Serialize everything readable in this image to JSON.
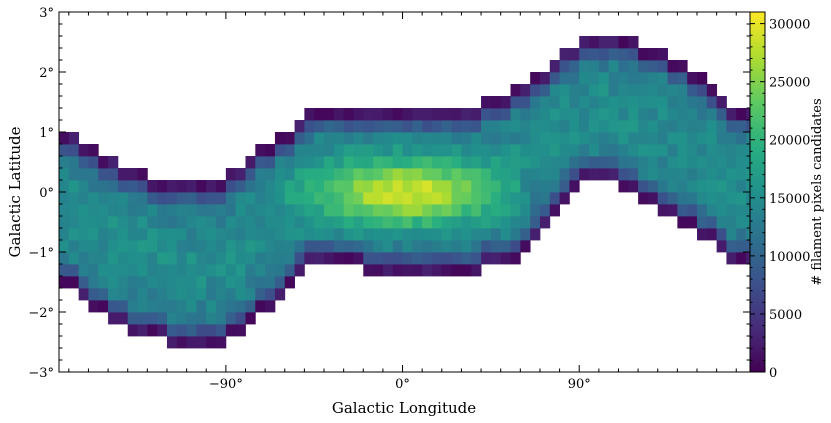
{
  "chart_data": {
    "type": "heatmap",
    "title": "",
    "xlabel": "Galactic Longitude",
    "ylabel": "Galactic Latitude",
    "x_ticks": [
      {
        "value": -90,
        "label": "−90°"
      },
      {
        "value": 0,
        "label": "0°"
      },
      {
        "value": 90,
        "label": "90°"
      }
    ],
    "y_ticks": [
      {
        "value": 3,
        "label": "3°"
      },
      {
        "value": 2,
        "label": "2°"
      },
      {
        "value": 1,
        "label": "1°"
      },
      {
        "value": 0,
        "label": "0°"
      },
      {
        "value": -1,
        "label": "−1°"
      },
      {
        "value": -2,
        "label": "−2°"
      },
      {
        "value": -3,
        "label": "−3°"
      }
    ],
    "xlim": [
      -175,
      177
    ],
    "ylim": [
      -3,
      3
    ],
    "bin_size_deg": {
      "x": 5,
      "y": 0.2
    },
    "colorbar": {
      "label": "# filament pixels candidates",
      "range": [
        0,
        31000
      ],
      "ticks": [
        0,
        5000,
        10000,
        15000,
        20000,
        25000,
        30000
      ],
      "colormap": "viridis"
    },
    "occupied_band": [
      {
        "l": -170,
        "b_min": -1.6,
        "b_max": 1.0
      },
      {
        "l": -160,
        "b_min": -1.9,
        "b_max": 0.8
      },
      {
        "l": -150,
        "b_min": -2.1,
        "b_max": 0.6
      },
      {
        "l": -140,
        "b_min": -2.3,
        "b_max": 0.4
      },
      {
        "l": -130,
        "b_min": -2.4,
        "b_max": 0.3
      },
      {
        "l": -120,
        "b_min": -2.5,
        "b_max": 0.2
      },
      {
        "l": -110,
        "b_min": -2.5,
        "b_max": 0.2
      },
      {
        "l": -100,
        "b_min": -2.55,
        "b_max": 0.2
      },
      {
        "l": -90,
        "b_min": -2.5,
        "b_max": 0.3
      },
      {
        "l": -80,
        "b_min": -2.3,
        "b_max": 0.5
      },
      {
        "l": -70,
        "b_min": -2.0,
        "b_max": 0.8
      },
      {
        "l": -60,
        "b_min": -1.6,
        "b_max": 1.0
      },
      {
        "l": -50,
        "b_min": -1.3,
        "b_max": 1.3
      },
      {
        "l": -40,
        "b_min": -1.2,
        "b_max": 1.5
      },
      {
        "l": -20,
        "b_min": -1.3,
        "b_max": 1.4
      },
      {
        "l": 0,
        "b_min": -1.3,
        "b_max": 1.4
      },
      {
        "l": 20,
        "b_min": -1.3,
        "b_max": 1.4
      },
      {
        "l": 40,
        "b_min": -1.3,
        "b_max": 1.5
      },
      {
        "l": 50,
        "b_min": -1.2,
        "b_max": 1.6
      },
      {
        "l": 60,
        "b_min": -1.1,
        "b_max": 1.8
      },
      {
        "l": 70,
        "b_min": -0.6,
        "b_max": 2.0
      },
      {
        "l": 80,
        "b_min": -0.2,
        "b_max": 2.3
      },
      {
        "l": 90,
        "b_min": 0.1,
        "b_max": 2.5
      },
      {
        "l": 100,
        "b_min": 0.2,
        "b_max": 2.6
      },
      {
        "l": 110,
        "b_min": 0.1,
        "b_max": 2.6
      },
      {
        "l": 120,
        "b_min": -0.1,
        "b_max": 2.5
      },
      {
        "l": 130,
        "b_min": -0.3,
        "b_max": 2.4
      },
      {
        "l": 140,
        "b_min": -0.5,
        "b_max": 2.2
      },
      {
        "l": 150,
        "b_min": -0.7,
        "b_max": 2.0
      },
      {
        "l": 160,
        "b_min": -0.9,
        "b_max": 1.7
      },
      {
        "l": 170,
        "b_min": -1.2,
        "b_max": 1.4
      }
    ],
    "peak_region": {
      "l_min": -40,
      "l_max": 40,
      "b_min": -0.4,
      "b_max": 0.4,
      "approx_value": 29000
    }
  }
}
